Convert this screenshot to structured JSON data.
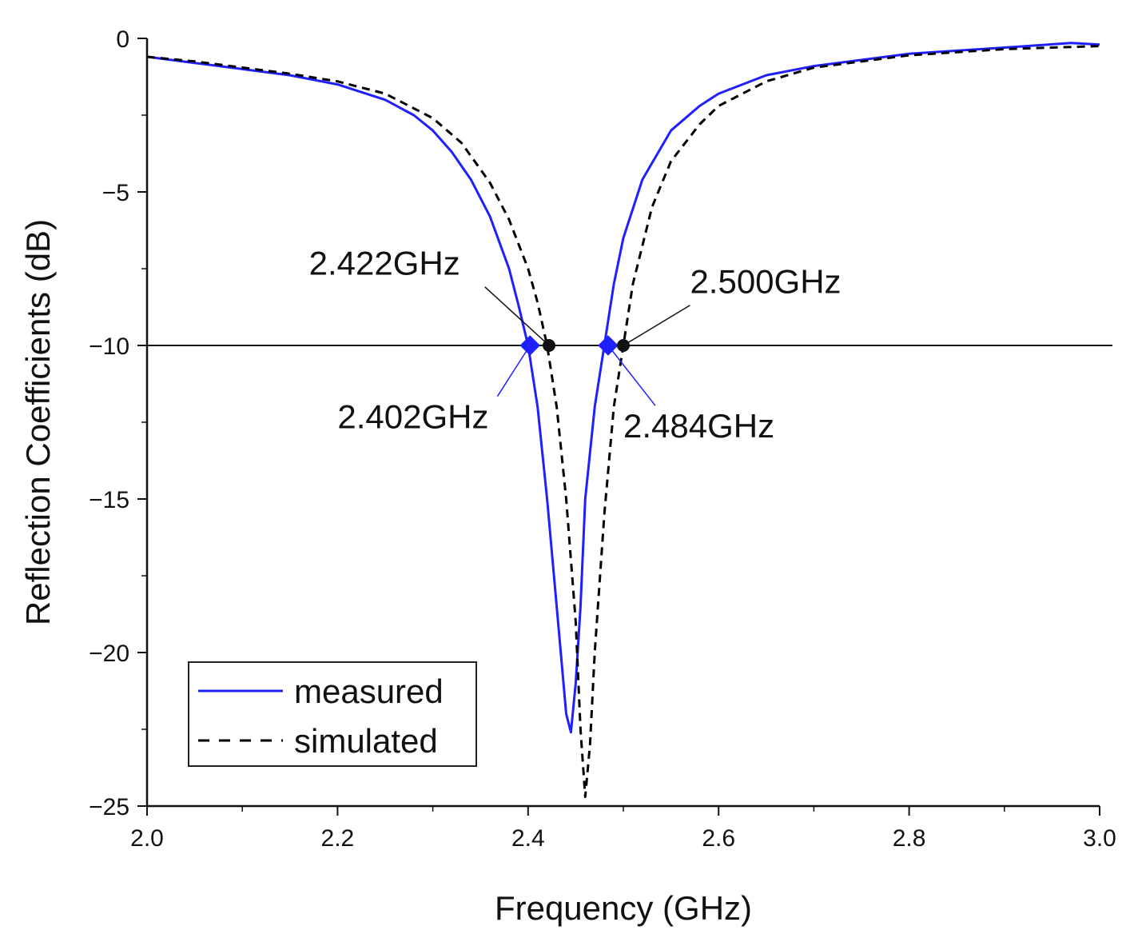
{
  "chart_data": {
    "type": "line",
    "xlabel": "Frequency (GHz)",
    "ylabel": "Reflection Coefficients (dB)",
    "xlim": [
      2.0,
      3.0
    ],
    "ylim": [
      -25,
      0
    ],
    "x_ticks": [
      "2.0",
      "2.2",
      "2.4",
      "2.6",
      "2.8",
      "3.0"
    ],
    "y_ticks": [
      "0",
      "-5",
      "-10",
      "-15",
      "-20",
      "-25"
    ],
    "reference_line": -10,
    "legend_position": "bottom-left",
    "series": [
      {
        "name": "measured",
        "color": "#1f1fff",
        "style": "solid",
        "x": [
          2.0,
          2.05,
          2.1,
          2.15,
          2.2,
          2.25,
          2.28,
          2.3,
          2.32,
          2.34,
          2.36,
          2.38,
          2.39,
          2.4,
          2.41,
          2.42,
          2.43,
          2.44,
          2.445,
          2.45,
          2.455,
          2.46,
          2.47,
          2.48,
          2.49,
          2.5,
          2.52,
          2.55,
          2.58,
          2.6,
          2.65,
          2.7,
          2.8,
          2.9,
          2.97,
          3.0
        ],
        "y": [
          -0.6,
          -0.8,
          -1.0,
          -1.2,
          -1.5,
          -2.0,
          -2.5,
          -3.0,
          -3.7,
          -4.6,
          -5.8,
          -7.5,
          -8.7,
          -10.0,
          -12.0,
          -15.0,
          -18.5,
          -22.0,
          -22.6,
          -21.0,
          -18.5,
          -15.0,
          -12.0,
          -10.0,
          -8.0,
          -6.5,
          -4.6,
          -3.0,
          -2.2,
          -1.8,
          -1.2,
          -0.9,
          -0.5,
          -0.3,
          -0.15,
          -0.2
        ]
      },
      {
        "name": "simulated",
        "color": "#000000",
        "style": "dashed",
        "x": [
          2.0,
          2.05,
          2.1,
          2.15,
          2.2,
          2.25,
          2.3,
          2.33,
          2.36,
          2.38,
          2.4,
          2.41,
          2.42,
          2.43,
          2.44,
          2.45,
          2.455,
          2.46,
          2.465,
          2.47,
          2.48,
          2.49,
          2.5,
          2.51,
          2.53,
          2.55,
          2.58,
          2.6,
          2.65,
          2.7,
          2.8,
          2.9,
          3.0
        ],
        "y": [
          -0.6,
          -0.75,
          -0.95,
          -1.15,
          -1.4,
          -1.8,
          -2.6,
          -3.4,
          -4.7,
          -5.9,
          -7.5,
          -8.6,
          -10.0,
          -12.0,
          -15.0,
          -19.0,
          -22.5,
          -24.7,
          -23.0,
          -20.0,
          -15.5,
          -12.0,
          -10.0,
          -8.0,
          -5.5,
          -4.0,
          -2.8,
          -2.2,
          -1.4,
          -0.95,
          -0.55,
          -0.35,
          -0.25
        ]
      }
    ],
    "markers": [
      {
        "series": "measured",
        "x": 2.402,
        "y": -10,
        "label": "2.402GHz",
        "label_x": 2.2,
        "label_y": -12.7
      },
      {
        "series": "simulated",
        "x": 2.422,
        "y": -10,
        "label": "2.422GHz",
        "label_x": 2.17,
        "label_y": -7.7
      },
      {
        "series": "measured",
        "x": 2.484,
        "y": -10,
        "label": "2.484GHz",
        "label_x": 2.5,
        "label_y": -13.0
      },
      {
        "series": "simulated",
        "x": 2.5,
        "y": -10,
        "label": "2.500GHz",
        "label_x": 2.57,
        "label_y": -8.3
      }
    ]
  }
}
